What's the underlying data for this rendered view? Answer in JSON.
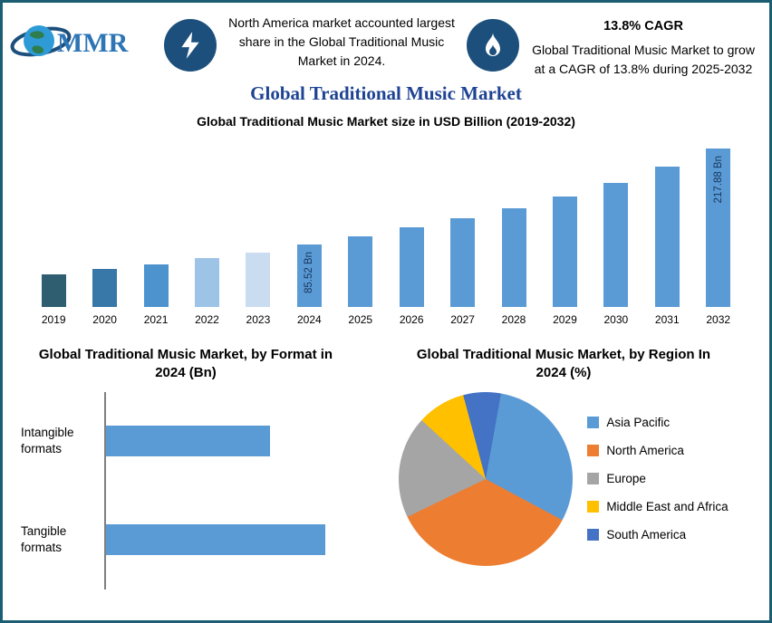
{
  "logo": {
    "text": "MMR"
  },
  "header": {
    "left_note": "North America market accounted largest share in the Global Traditional Music Market in 2024.",
    "cagr_title": "13.8% CAGR",
    "cagr_note": "Global Traditional Music Market to grow at a CAGR of 13.8% during 2025-2032"
  },
  "title": "Global Traditional Music Market",
  "colors": {
    "accent_navy": "#1C4F7C",
    "primary_bar_blue": "#5B9BD5",
    "border_teal": "#1B5E74",
    "title_blue": "#1E4393"
  },
  "chart_data": [
    {
      "type": "bar",
      "title": "Global Traditional Music Market size in USD Billion (2019-2032)",
      "categories": [
        "2019",
        "2020",
        "2021",
        "2022",
        "2023",
        "2024",
        "2025",
        "2026",
        "2027",
        "2028",
        "2029",
        "2030",
        "2031",
        "2032"
      ],
      "values": [
        45,
        52,
        59,
        67,
        75,
        85.52,
        97,
        110,
        122,
        136,
        152,
        170,
        193,
        217.88
      ],
      "ylabel": "USD Billion",
      "ylim": [
        0,
        230
      ],
      "grid": false,
      "bar_colors": [
        "#2F5E71",
        "#3878A8",
        "#4D94CF",
        "#9DC3E6",
        "#C9DCF0",
        "#5B9BD5",
        "#5B9BD5",
        "#5B9BD5",
        "#5B9BD5",
        "#5B9BD5",
        "#5B9BD5",
        "#5B9BD5",
        "#5B9BD5",
        "#5B9BD5"
      ],
      "data_labels": [
        {
          "index": 5,
          "text": "85.52 Bn"
        },
        {
          "index": 13,
          "text": "217.88 Bn"
        }
      ]
    },
    {
      "type": "bar",
      "orientation": "horizontal",
      "title": "Global Traditional Music Market, by Format in 2024 (Bn)",
      "categories": [
        "Intangible formats",
        "Tangible formats"
      ],
      "values": [
        30,
        40
      ],
      "xlim": [
        0,
        46
      ],
      "bar_color": "#5B9BD5",
      "grid": false
    },
    {
      "type": "pie",
      "title": "Global Traditional Music Market, by Region In 2024 (%)",
      "slices": [
        {
          "label": "Asia Pacific",
          "value": 30,
          "color": "#5B9BD5"
        },
        {
          "label": "North America",
          "value": 35,
          "color": "#ED7D31"
        },
        {
          "label": "Europe",
          "value": 19,
          "color": "#A5A5A5"
        },
        {
          "label": "Middle East and Africa",
          "value": 9,
          "color": "#FFC000"
        },
        {
          "label": "South America",
          "value": 7,
          "color": "#4472C4"
        }
      ],
      "start_angle_deg": -15,
      "render_order": [
        "South America",
        "Asia Pacific",
        "North America",
        "Europe",
        "Middle East and Africa"
      ],
      "legend_position": "right"
    }
  ]
}
